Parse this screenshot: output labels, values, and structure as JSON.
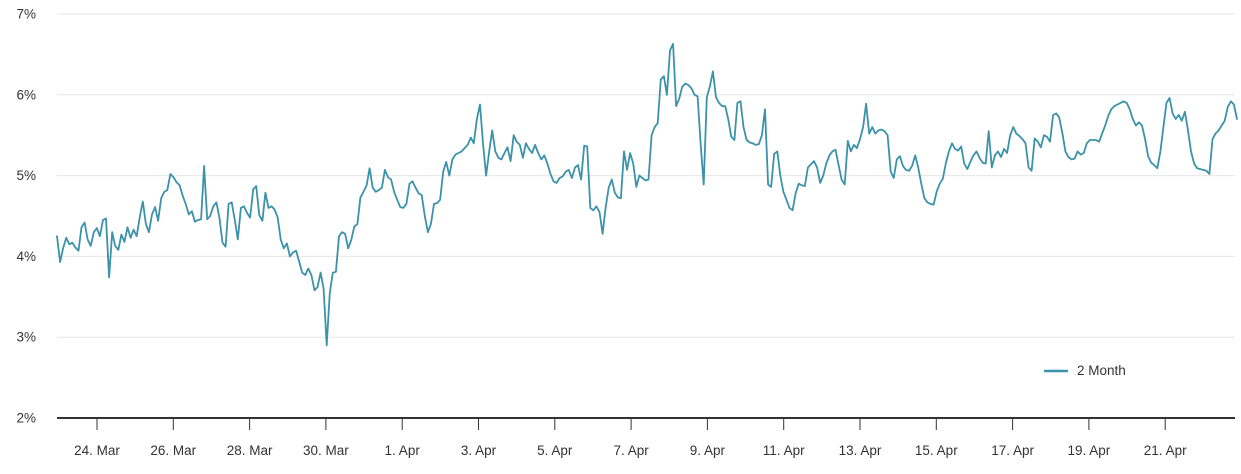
{
  "chart_data": {
    "type": "line",
    "title": "",
    "y_ticks": [
      "2%",
      "3%",
      "4%",
      "5%",
      "6%",
      "7%"
    ],
    "ylim": [
      2,
      7
    ],
    "y_unit": "%",
    "grid": "horizontal",
    "legend_position": "bottom-right",
    "x_ticks": [
      "24. Mar",
      "26. Mar",
      "28. Mar",
      "30. Mar",
      "1. Apr",
      "3. Apr",
      "5. Apr",
      "7. Apr",
      "9. Apr",
      "11. Apr",
      "13. Apr",
      "15. Apr",
      "17. Apr",
      "19. Apr",
      "21. Apr"
    ],
    "series": [
      {
        "name": "2 Month",
        "color": "#3b92a9",
        "values": [
          4.25,
          3.93,
          4.1,
          4.23,
          4.15,
          4.17,
          4.11,
          4.07,
          4.36,
          4.42,
          4.21,
          4.13,
          4.3,
          4.35,
          4.25,
          4.45,
          4.47,
          3.74,
          4.3,
          4.13,
          4.08,
          4.27,
          4.18,
          4.36,
          4.23,
          4.33,
          4.25,
          4.49,
          4.68,
          4.4,
          4.3,
          4.52,
          4.61,
          4.44,
          4.72,
          4.8,
          4.82,
          5.02,
          4.98,
          4.92,
          4.88,
          4.75,
          4.65,
          4.52,
          4.56,
          4.43,
          4.45,
          4.46,
          5.12,
          4.46,
          4.5,
          4.62,
          4.67,
          4.48,
          4.17,
          4.12,
          4.65,
          4.67,
          4.45,
          4.21,
          4.6,
          4.62,
          4.54,
          4.48,
          4.83,
          4.87,
          4.51,
          4.44,
          4.79,
          4.6,
          4.62,
          4.58,
          4.48,
          4.21,
          4.1,
          4.16,
          4.0,
          4.05,
          4.07,
          3.94,
          3.8,
          3.77,
          3.85,
          3.77,
          3.58,
          3.62,
          3.8,
          3.6,
          2.9,
          3.55,
          3.8,
          3.81,
          4.25,
          4.3,
          4.28,
          4.1,
          4.2,
          4.37,
          4.4,
          4.73,
          4.8,
          4.88,
          5.09,
          4.85,
          4.8,
          4.82,
          4.85,
          5.07,
          4.98,
          4.95,
          4.8,
          4.7,
          4.61,
          4.6,
          4.65,
          4.9,
          4.93,
          4.85,
          4.78,
          4.76,
          4.5,
          4.3,
          4.4,
          4.65,
          4.66,
          4.7,
          5.05,
          5.17,
          5.0,
          5.2,
          5.26,
          5.28,
          5.3,
          5.34,
          5.38,
          5.47,
          5.4,
          5.7,
          5.88,
          5.4,
          5.0,
          5.3,
          5.56,
          5.3,
          5.22,
          5.2,
          5.28,
          5.35,
          5.18,
          5.5,
          5.42,
          5.38,
          5.22,
          5.4,
          5.33,
          5.28,
          5.38,
          5.28,
          5.2,
          5.25,
          5.15,
          5.02,
          4.93,
          4.91,
          4.97,
          4.99,
          5.05,
          5.07,
          4.97,
          5.1,
          5.13,
          4.95,
          5.37,
          5.36,
          4.6,
          4.57,
          4.62,
          4.55,
          4.28,
          4.6,
          4.85,
          4.95,
          4.79,
          4.73,
          4.72,
          5.3,
          5.07,
          5.28,
          5.15,
          4.86,
          5.0,
          4.97,
          4.94,
          4.95,
          5.5,
          5.6,
          5.65,
          6.19,
          6.23,
          6.0,
          6.55,
          6.63,
          5.86,
          5.95,
          6.1,
          6.14,
          6.12,
          6.08,
          6.0,
          5.98,
          5.4,
          4.89,
          5.97,
          6.1,
          6.29,
          5.97,
          5.9,
          5.86,
          5.86,
          5.7,
          5.48,
          5.44,
          5.9,
          5.92,
          5.6,
          5.44,
          5.41,
          5.4,
          5.38,
          5.39,
          5.5,
          5.82,
          4.89,
          4.86,
          5.27,
          5.3,
          5.0,
          4.8,
          4.7,
          4.6,
          4.57,
          4.78,
          4.9,
          4.88,
          4.87,
          5.1,
          5.14,
          5.18,
          5.1,
          4.91,
          5.0,
          5.15,
          5.25,
          5.3,
          5.32,
          5.13,
          4.95,
          4.89,
          5.43,
          5.3,
          5.38,
          5.34,
          5.45,
          5.6,
          5.89,
          5.52,
          5.6,
          5.52,
          5.56,
          5.57,
          5.55,
          5.5,
          5.05,
          4.97,
          5.2,
          5.24,
          5.12,
          5.07,
          5.06,
          5.12,
          5.25,
          5.1,
          4.9,
          4.72,
          4.67,
          4.65,
          4.64,
          4.8,
          4.9,
          4.96,
          5.15,
          5.3,
          5.4,
          5.33,
          5.31,
          5.36,
          5.15,
          5.08,
          5.17,
          5.25,
          5.3,
          5.22,
          5.16,
          5.15,
          5.55,
          5.1,
          5.25,
          5.3,
          5.23,
          5.33,
          5.28,
          5.5,
          5.6,
          5.52,
          5.49,
          5.45,
          5.4,
          5.1,
          5.06,
          5.46,
          5.42,
          5.35,
          5.5,
          5.48,
          5.42,
          5.75,
          5.77,
          5.72,
          5.53,
          5.3,
          5.23,
          5.2,
          5.21,
          5.3,
          5.26,
          5.28,
          5.4,
          5.44,
          5.44,
          5.44,
          5.42,
          5.52,
          5.62,
          5.74,
          5.82,
          5.86,
          5.88,
          5.9,
          5.92,
          5.9,
          5.82,
          5.7,
          5.62,
          5.66,
          5.62,
          5.45,
          5.24,
          5.16,
          5.13,
          5.09,
          5.3,
          5.6,
          5.9,
          5.96,
          5.77,
          5.7,
          5.75,
          5.68,
          5.79,
          5.56,
          5.3,
          5.15,
          5.09,
          5.08,
          5.07,
          5.06,
          5.02,
          5.45,
          5.52,
          5.56,
          5.62,
          5.68,
          5.85,
          5.92,
          5.88,
          5.7
        ]
      }
    ]
  },
  "legend": {
    "label": "2 Month"
  },
  "colors": {
    "line": "#3b92a9",
    "grid": "#e6e6e6",
    "axis": "#333333",
    "text": "#333333"
  }
}
